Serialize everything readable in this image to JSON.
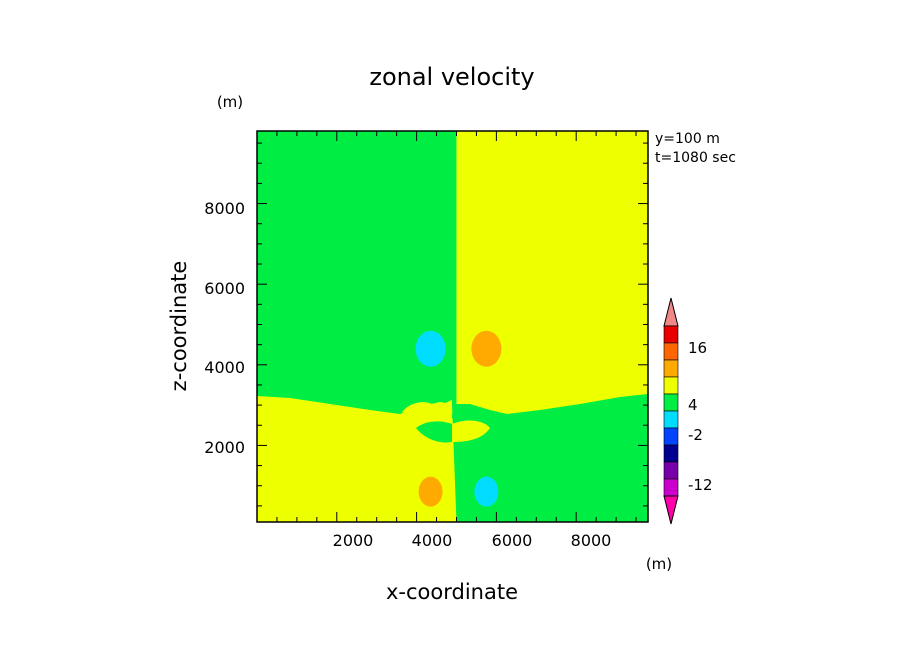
{
  "chart_data": {
    "type": "heatmap",
    "title": "zonal velocity",
    "xlabel": "x-coordinate",
    "ylabel": "z-coordinate",
    "x_unit": "(m)",
    "y_unit": "(m)",
    "xlim": [
      0,
      9800
    ],
    "ylim": [
      100,
      9800
    ],
    "x_ticks": [
      "2000",
      "4000",
      "6000",
      "8000"
    ],
    "y_ticks": [
      "2000",
      "4000",
      "6000",
      "8000"
    ],
    "annotations": [
      "y=100 m",
      "t=1080 sec"
    ],
    "colorbar": {
      "labels": [
        "16",
        "4",
        "-2",
        "-12"
      ],
      "colors": [
        "#f08888",
        "#e80000",
        "#ff6600",
        "#ffaa00",
        "#eeff00",
        "#00ee44",
        "#00ddff",
        "#0044ff",
        "#000090",
        "#7700aa",
        "#cc00cc",
        "#ff00aa"
      ]
    },
    "field_colors": {
      "green": "#00ee44",
      "yellow": "#eeff00",
      "orange": "#ffaa00",
      "cyan": "#00ddff"
    },
    "regions": [
      {
        "name": "upper-left",
        "color": "green"
      },
      {
        "name": "upper-right",
        "color": "yellow"
      },
      {
        "name": "lower-left",
        "color": "yellow"
      },
      {
        "name": "lower-right",
        "color": "green"
      },
      {
        "name": "cell-upper-left",
        "color": "cyan",
        "cx": 4100,
        "cz": 4200
      },
      {
        "name": "cell-upper-right",
        "color": "orange",
        "cx": 5900,
        "cz": 4200
      },
      {
        "name": "cell-lower-left",
        "color": "orange",
        "cx": 4100,
        "cz": 1150
      },
      {
        "name": "cell-lower-right",
        "color": "cyan",
        "cx": 5900,
        "cz": 1150
      }
    ]
  }
}
